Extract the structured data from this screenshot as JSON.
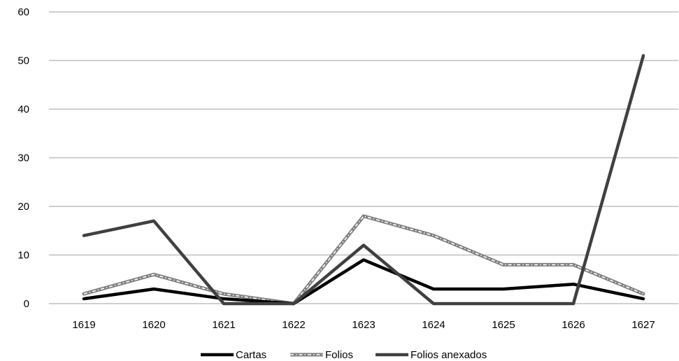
{
  "chart_data": {
    "type": "line",
    "title": "",
    "xlabel": "",
    "ylabel": "",
    "categories": [
      "1619",
      "1620",
      "1621",
      "1622",
      "1623",
      "1624",
      "1625",
      "1626",
      "1627"
    ],
    "ylim": [
      0,
      60
    ],
    "yticks": [
      "0",
      "10",
      "20",
      "30",
      "40",
      "50",
      "60"
    ],
    "grid": "horizontal",
    "legend_position": "bottom",
    "series": [
      {
        "name": "Cartas",
        "values": [
          1,
          3,
          1,
          0,
          9,
          3,
          3,
          4,
          1
        ],
        "color": "#000000",
        "style": "solid"
      },
      {
        "name": "Folios",
        "values": [
          2,
          6,
          2,
          0,
          18,
          14,
          8,
          8,
          2
        ],
        "color": "#7f7f7f",
        "style": "dash-dot-white"
      },
      {
        "name": "Folios anexados",
        "values": [
          14,
          17,
          0,
          0,
          12,
          0,
          0,
          0,
          51
        ],
        "color": "#404040",
        "style": "solid"
      }
    ]
  }
}
